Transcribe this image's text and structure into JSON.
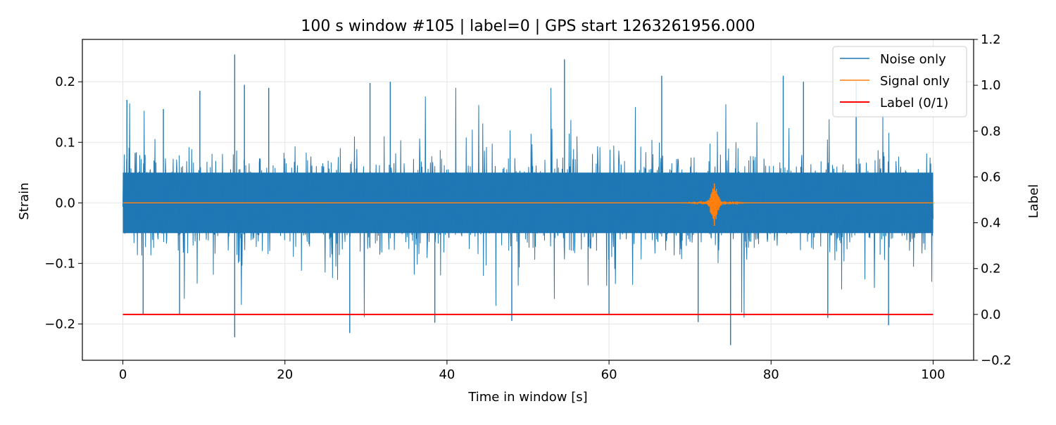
{
  "chart_data": {
    "type": "line",
    "title": "100 s window #105 | label=0 | GPS start 1263261956.000",
    "xlabel": "Time in window [s]",
    "ylabel": "Strain",
    "y2label": "Label",
    "xlim": [
      -5,
      105
    ],
    "ylim": [
      -0.26,
      0.27
    ],
    "y2lim": [
      -0.2,
      1.2
    ],
    "xticks": [
      0,
      20,
      40,
      60,
      80,
      100
    ],
    "xtick_labels": [
      "0",
      "20",
      "40",
      "60",
      "80",
      "100"
    ],
    "yticks": [
      -0.2,
      -0.1,
      0.0,
      0.1,
      0.2
    ],
    "ytick_labels": [
      "−0.2",
      "−0.1",
      "0.0",
      "0.1",
      "0.2"
    ],
    "y2ticks": [
      -0.2,
      0.0,
      0.2,
      0.4,
      0.6,
      0.8,
      1.0,
      1.2
    ],
    "y2tick_labels": [
      "−0.2",
      "0.0",
      "0.2",
      "0.4",
      "0.6",
      "0.8",
      "1.0",
      "1.2"
    ],
    "grid": true,
    "legend_position": "top-right",
    "series": [
      {
        "name": "Noise only",
        "color": "#1f77b4",
        "axis": "left",
        "description_stats": {
          "x_range": [
            0,
            100
          ],
          "typical_envelope": [
            -0.1,
            0.1
          ]
        },
        "spikes": [
          {
            "x": 0.5,
            "y": 0.17
          },
          {
            "x": 5.0,
            "y": 0.155
          },
          {
            "x": 13.8,
            "y": 0.245
          },
          {
            "x": 13.8,
            "y": -0.222
          },
          {
            "x": 15.0,
            "y": 0.195
          },
          {
            "x": 18.0,
            "y": 0.19
          },
          {
            "x": 28.0,
            "y": -0.215
          },
          {
            "x": 30.5,
            "y": 0.198
          },
          {
            "x": 33.0,
            "y": 0.2
          },
          {
            "x": 38.5,
            "y": -0.198
          },
          {
            "x": 54.5,
            "y": 0.237
          },
          {
            "x": 48.0,
            "y": -0.195
          },
          {
            "x": 66.5,
            "y": 0.21
          },
          {
            "x": 71.0,
            "y": -0.197
          },
          {
            "x": 75.0,
            "y": -0.235
          },
          {
            "x": 81.5,
            "y": 0.21
          },
          {
            "x": 84.0,
            "y": 0.2
          },
          {
            "x": 90.5,
            "y": 0.2
          },
          {
            "x": 94.5,
            "y": -0.202
          },
          {
            "x": 2.5,
            "y": -0.185
          },
          {
            "x": 7.0,
            "y": -0.185
          },
          {
            "x": 9.5,
            "y": 0.185
          },
          {
            "x": 60.0,
            "y": -0.185
          },
          {
            "x": 87.0,
            "y": -0.19
          }
        ]
      },
      {
        "name": "Signal only",
        "color": "#ff7f0e",
        "axis": "left",
        "baseline": 0.0,
        "burst": {
          "center_x": 73.0,
          "peak_y": 0.032,
          "trough_y": -0.038,
          "extent_x": [
            69.0,
            77.0
          ]
        }
      },
      {
        "name": "Label (0/1)",
        "color": "#ff0000",
        "axis": "right",
        "x": [
          0,
          100
        ],
        "y": [
          0,
          0
        ]
      }
    ]
  }
}
